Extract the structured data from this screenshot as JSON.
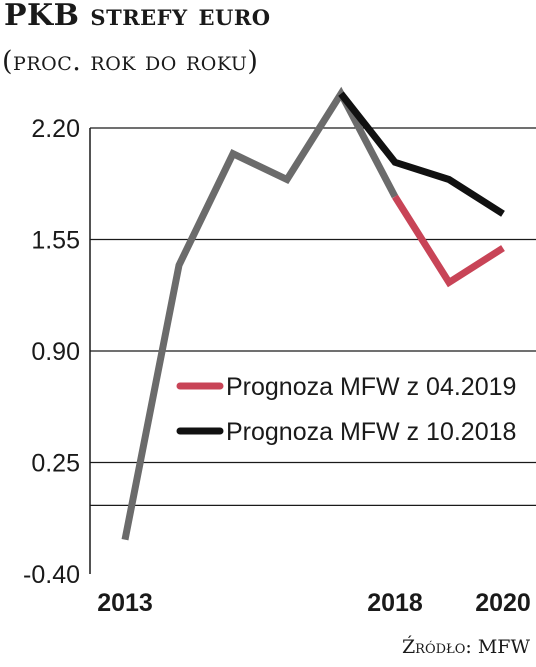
{
  "chart_data": {
    "type": "line",
    "title": "PKB strefy euro",
    "subtitle": "(proc. rok do roku)",
    "source": "Źródło: MFW",
    "x": [
      2013,
      2014,
      2015,
      2016,
      2017,
      2018,
      2019,
      2020
    ],
    "x_tick_labels": [
      "2013",
      "2018",
      "2020"
    ],
    "y_tick_labels": [
      "2.20",
      "1.55",
      "0.90",
      "0.25",
      "-0.40"
    ],
    "ylim": [
      -0.4,
      2.4
    ],
    "grid_values": [
      2.2,
      1.55,
      0.9,
      0.25,
      0.0
    ],
    "series": [
      {
        "key": "history",
        "color": "#6b6b6b",
        "points": [
          [
            2013,
            -0.2
          ],
          [
            2014,
            1.4
          ],
          [
            2015,
            2.05
          ],
          [
            2016,
            1.9
          ],
          [
            2017,
            2.4
          ],
          [
            2018,
            1.8
          ]
        ]
      },
      {
        "key": "forecast_oct2018",
        "name": "Prognoza MFW z 10.2018",
        "color": "#111111",
        "points": [
          [
            2017,
            2.4
          ],
          [
            2018,
            2.0
          ],
          [
            2019,
            1.9
          ],
          [
            2020,
            1.7
          ]
        ]
      },
      {
        "key": "forecast_apr2019",
        "name": "Prognoza MFW z 04.2019",
        "color": "#c84457",
        "points": [
          [
            2018,
            1.8
          ],
          [
            2019,
            1.3
          ],
          [
            2020,
            1.5
          ]
        ]
      }
    ],
    "legend_position": "middle-right"
  }
}
